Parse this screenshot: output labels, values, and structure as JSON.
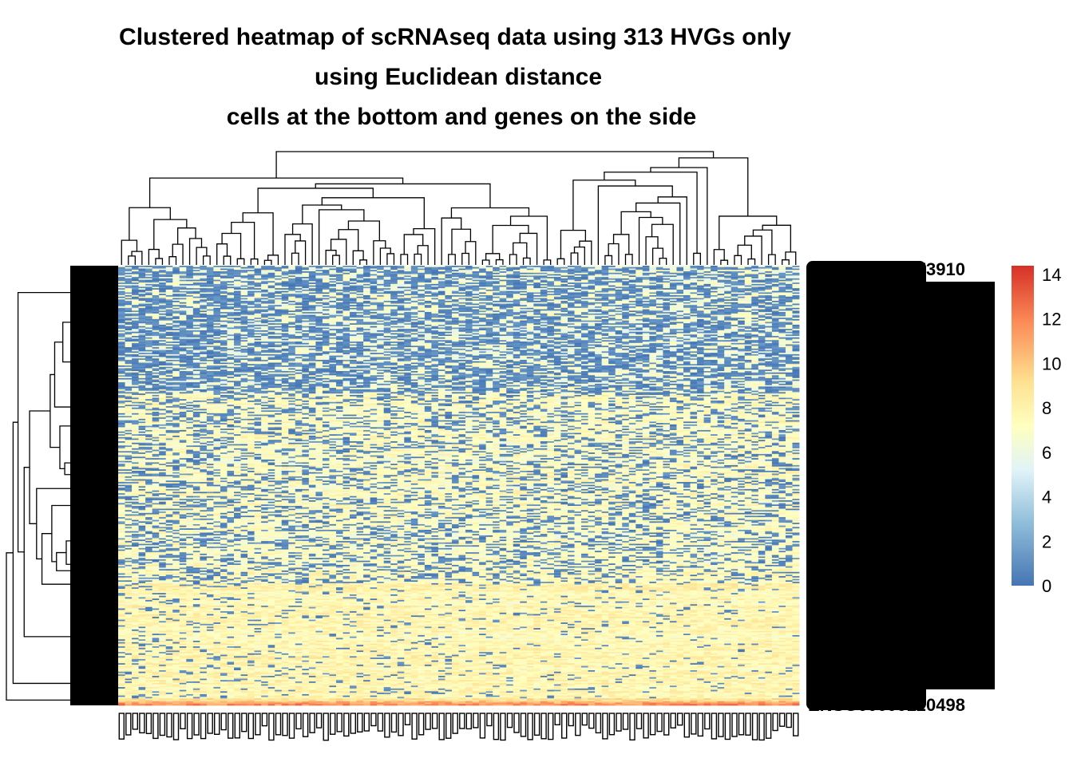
{
  "chart_data": {
    "type": "heatmap",
    "title": [
      "Clustered heatmap of scRNAseq data using 313 HVGs only",
      "using Euclidean distance",
      "cells at the bottom and genes on the side"
    ],
    "rows": {
      "count": 313,
      "axis_side": "right",
      "tree": "row dendrogram, left side"
    },
    "columns": {
      "count": 100,
      "axis_side": "bottom",
      "tree": "column dendrogram, top"
    },
    "value_range": [
      0,
      14
    ],
    "legend": {
      "ticks": [
        0,
        2,
        4,
        6,
        8,
        10,
        12,
        14
      ],
      "palette": [
        "#4575b4",
        "#91bfdb",
        "#e0f3f8",
        "#ffffbf",
        "#fee090",
        "#fc8d59",
        "#d73027"
      ],
      "placement": "right"
    },
    "gene_labels_visible": [
      "ENSG00000120498",
      "ENSG00000173910"
    ],
    "note_overlap": "Row (gene) and column (cell) labels are so dense they overlap into solid black blocks."
  },
  "colors": {
    "low": "#4575b4",
    "mid": "#ffffbf",
    "high": "#d73027"
  }
}
